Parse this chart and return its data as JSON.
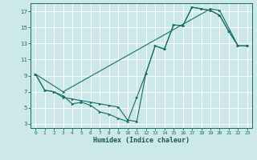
{
  "bg_color": "#cce8e8",
  "grid_color": "#ffffff",
  "line_color": "#1a6b6b",
  "xlabel": "Humidex (Indice chaleur)",
  "xlim": [
    -0.5,
    23.5
  ],
  "ylim": [
    2.5,
    18.0
  ],
  "xticks": [
    0,
    1,
    2,
    3,
    4,
    5,
    6,
    7,
    8,
    9,
    10,
    11,
    12,
    13,
    14,
    15,
    16,
    17,
    18,
    19,
    20,
    21,
    22,
    23
  ],
  "yticks": [
    3,
    5,
    7,
    9,
    11,
    13,
    15,
    17
  ],
  "line1_x": [
    0,
    1,
    2,
    3,
    4,
    5,
    6,
    7,
    8,
    9,
    10,
    11,
    12,
    13,
    14,
    15,
    16,
    17,
    18,
    19,
    20,
    21,
    22,
    23
  ],
  "line1_y": [
    9.2,
    7.2,
    7.0,
    6.5,
    5.5,
    5.7,
    5.3,
    4.5,
    4.2,
    3.7,
    3.3,
    6.3,
    9.3,
    12.7,
    12.3,
    15.3,
    15.2,
    17.5,
    17.3,
    17.1,
    16.5,
    14.5,
    12.7,
    12.7
  ],
  "line2_x": [
    0,
    1,
    2,
    3,
    4,
    5,
    6,
    7,
    8,
    9,
    10,
    11,
    12,
    13,
    14,
    15,
    16,
    17,
    18,
    19,
    20,
    21,
    22,
    23
  ],
  "line2_y": [
    9.2,
    7.2,
    7.0,
    6.3,
    6.1,
    5.9,
    5.7,
    5.5,
    5.3,
    5.1,
    3.5,
    3.3,
    9.3,
    12.7,
    12.3,
    15.3,
    15.2,
    17.5,
    17.3,
    17.1,
    16.5,
    14.5,
    12.7,
    12.7
  ],
  "line3_x": [
    0,
    3,
    19,
    20,
    22,
    23
  ],
  "line3_y": [
    9.2,
    7.0,
    17.3,
    17.1,
    12.7,
    12.7
  ]
}
